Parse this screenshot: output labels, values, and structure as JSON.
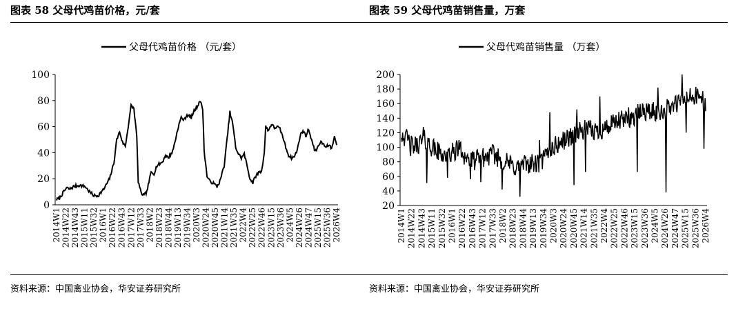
{
  "figures": [
    {
      "title": "图表 58 父母代鸡苗价格，元/套",
      "source": "资料来源：中国禽业协会，华安证券研究所"
    },
    {
      "title": "图表 59 父母代鸡苗销售量，万套",
      "source": "资料来源：中国禽业协会，华安证券研究所"
    }
  ],
  "chart_data": [
    {
      "type": "line",
      "title": "",
      "xlabel": "",
      "ylabel": "",
      "legend": "top-center",
      "grid": false,
      "ylim": [
        0,
        100
      ],
      "yticks": [
        0,
        20,
        40,
        60,
        80,
        100
      ],
      "xticks": [
        "2014W1",
        "2014W22",
        "2014W43",
        "2015W11",
        "2015W32",
        "2016W1",
        "2016W22",
        "2016W43",
        "2017W12",
        "2017W33",
        "2018W2",
        "2018W23",
        "2018W44",
        "2019W13",
        "2019W34",
        "2020W3",
        "2020W24",
        "2020W45",
        "2021W14",
        "2021W35",
        "2022W4",
        "2022W25",
        "2022W46",
        "2023W15",
        "2023W36",
        "2024W5",
        "2024W26",
        "2024W47",
        "2025W15",
        "2025W36",
        "2026W4"
      ],
      "series": [
        {
          "name": "父母代鸡苗价格 （元/套）",
          "color": "#000000",
          "anchors": [
            [
              0,
              4
            ],
            [
              4,
              5
            ],
            [
              10,
              10
            ],
            [
              14,
              13
            ],
            [
              18,
              12
            ],
            [
              24,
              14
            ],
            [
              32,
              15
            ],
            [
              40,
              14
            ],
            [
              46,
              10
            ],
            [
              52,
              7
            ],
            [
              58,
              7
            ],
            [
              66,
              12
            ],
            [
              74,
              20
            ],
            [
              80,
              32
            ],
            [
              84,
              50
            ],
            [
              88,
              56
            ],
            [
              92,
              48
            ],
            [
              96,
              45
            ],
            [
              100,
              60
            ],
            [
              104,
              76
            ],
            [
              108,
              74
            ],
            [
              112,
              52
            ],
            [
              114,
              18
            ],
            [
              118,
              9
            ],
            [
              122,
              7
            ],
            [
              126,
              10
            ],
            [
              132,
              25
            ],
            [
              136,
              24
            ],
            [
              140,
              30
            ],
            [
              148,
              33
            ],
            [
              152,
              38
            ],
            [
              156,
              36
            ],
            [
              162,
              41
            ],
            [
              166,
              50
            ],
            [
              170,
              60
            ],
            [
              174,
              67
            ],
            [
              178,
              65
            ],
            [
              182,
              69
            ],
            [
              188,
              67
            ],
            [
              192,
              72
            ],
            [
              196,
              75
            ],
            [
              200,
              80
            ],
            [
              204,
              74
            ],
            [
              206,
              42
            ],
            [
              210,
              22
            ],
            [
              214,
              18
            ],
            [
              218,
              17
            ],
            [
              224,
              14
            ],
            [
              228,
              18
            ],
            [
              234,
              30
            ],
            [
              238,
              50
            ],
            [
              242,
              71
            ],
            [
              246,
              62
            ],
            [
              250,
              44
            ],
            [
              254,
              39
            ],
            [
              258,
              36
            ],
            [
              262,
              39
            ],
            [
              266,
              30
            ],
            [
              270,
              20
            ],
            [
              274,
              17
            ],
            [
              278,
              22
            ],
            [
              284,
              26
            ],
            [
              286,
              25
            ],
            [
              290,
              40
            ],
            [
              292,
              60
            ],
            [
              296,
              57
            ],
            [
              300,
              62
            ],
            [
              304,
              59
            ],
            [
              308,
              60
            ],
            [
              312,
              58
            ],
            [
              316,
              52
            ],
            [
              320,
              44
            ],
            [
              324,
              38
            ],
            [
              328,
              36
            ],
            [
              332,
              37
            ],
            [
              336,
              42
            ],
            [
              340,
              53
            ],
            [
              344,
              57
            ],
            [
              348,
              53
            ],
            [
              352,
              58
            ],
            [
              356,
              50
            ],
            [
              360,
              42
            ],
            [
              364,
              43
            ],
            [
              368,
              48
            ],
            [
              372,
              47
            ],
            [
              376,
              44
            ],
            [
              380,
              46
            ],
            [
              384,
              43
            ],
            [
              386,
              48
            ],
            [
              388,
              52
            ],
            [
              390,
              49
            ],
            [
              391,
              47
            ]
          ]
        }
      ]
    },
    {
      "type": "line",
      "title": "",
      "xlabel": "",
      "ylabel": "",
      "legend": "top-center",
      "grid": false,
      "ylim": [
        20,
        200
      ],
      "yticks": [
        20,
        40,
        60,
        80,
        100,
        120,
        140,
        160,
        180,
        200
      ],
      "xticks": [
        "2014W1",
        "2014W22",
        "2014W43",
        "2015W11",
        "2015W32",
        "2016W1",
        "2016W22",
        "2016W43",
        "2017W12",
        "2017W33",
        "2018W2",
        "2018W23",
        "2018W44",
        "2019W13",
        "2019W34",
        "2020W3",
        "2020W24",
        "2020W45",
        "2021W14",
        "2021W35",
        "2022W4",
        "2022W25",
        "2022W46",
        "2023W15",
        "2023W36",
        "2024W5",
        "2024W26",
        "2024W47",
        "2025W15",
        "2025W36",
        "2026W4"
      ],
      "series": [
        {
          "name": "父母代鸡苗销售量 （万套）",
          "color": "#000000",
          "anchors": [
            [
              0,
              120
            ],
            [
              20,
              100
            ],
            [
              40,
              110
            ],
            [
              60,
              95
            ],
            [
              80,
              88
            ],
            [
              100,
              98
            ],
            [
              120,
              80
            ],
            [
              140,
              85
            ],
            [
              160,
              90
            ],
            [
              180,
              80
            ],
            [
              200,
              72
            ],
            [
              220,
              78
            ],
            [
              240,
              76
            ],
            [
              260,
              98
            ],
            [
              280,
              108
            ],
            [
              300,
              118
            ],
            [
              320,
              124
            ],
            [
              340,
              122
            ],
            [
              360,
              128
            ],
            [
              380,
              136
            ],
            [
              400,
              140
            ],
            [
              420,
              150
            ],
            [
              440,
              148
            ],
            [
              460,
              152
            ],
            [
              480,
              160
            ],
            [
              500,
              168
            ],
            [
              520,
              170
            ],
            [
              529,
              160
            ]
          ],
          "spikes": [
            [
              7,
              120
            ],
            [
              16,
              88
            ],
            [
              38,
              128
            ],
            [
              44,
              51
            ],
            [
              80,
              58
            ],
            [
              100,
              110
            ],
            [
              120,
              56
            ],
            [
              138,
              52
            ],
            [
              160,
              102
            ],
            [
              175,
              42
            ],
            [
              206,
              32
            ],
            [
              240,
              110
            ],
            [
              258,
              148
            ],
            [
              290,
              107
            ],
            [
              300,
              48
            ],
            [
              305,
              152
            ],
            [
              320,
              66
            ],
            [
              345,
              170
            ],
            [
              395,
              155
            ],
            [
              410,
              66
            ],
            [
              446,
              182
            ],
            [
              460,
              38
            ],
            [
              488,
              200
            ],
            [
              495,
              120
            ],
            [
              520,
              170
            ],
            [
              526,
              98
            ]
          ]
        }
      ]
    }
  ]
}
